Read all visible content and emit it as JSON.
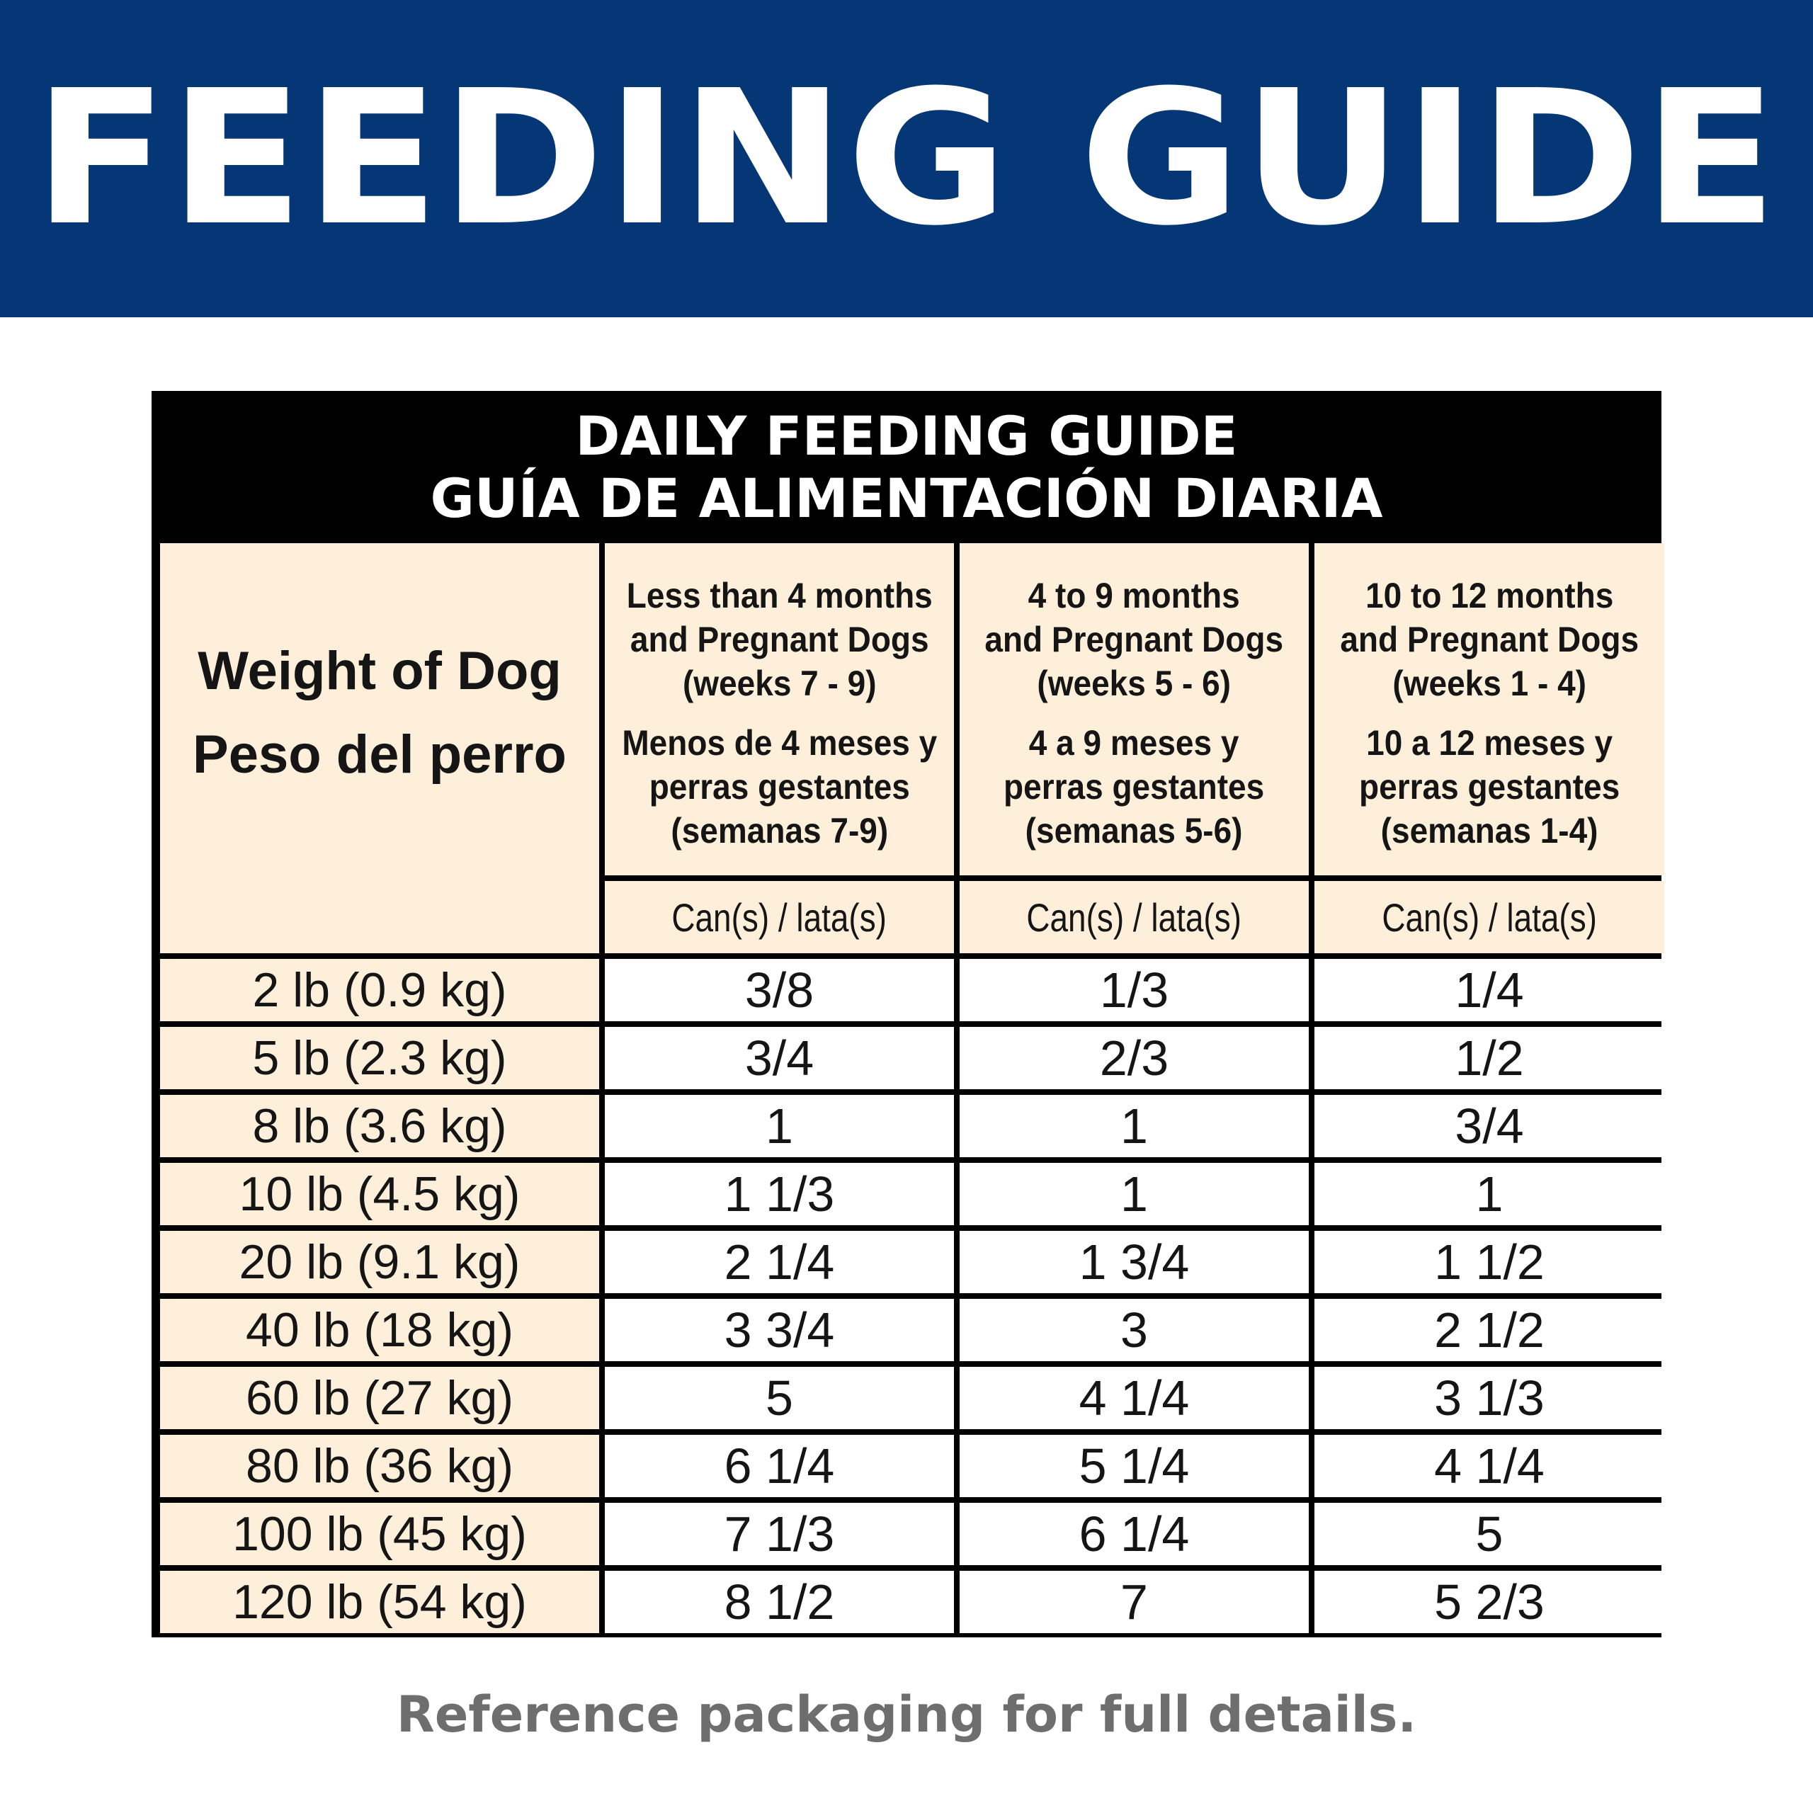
{
  "banner": {
    "title": "FEEDING GUIDE"
  },
  "table": {
    "title_en": "DAILY FEEDING GUIDE",
    "title_es": "GUÍA DE ALIMENTACIÓN DIARIA",
    "weight_header_en": "Weight of Dog",
    "weight_header_es": "Peso del perro",
    "columns": [
      {
        "en": [
          "Less than 4 months",
          "and Pregnant Dogs",
          "(weeks 7 - 9)"
        ],
        "es": [
          "Menos de 4 meses y",
          "perras gestantes",
          "(semanas 7-9)"
        ],
        "unit": "Can(s) / lata(s)"
      },
      {
        "en": [
          "4 to 9 months",
          "and Pregnant Dogs",
          "(weeks 5 - 6)"
        ],
        "es": [
          "4 a 9 meses y",
          "perras gestantes",
          "(semanas 5-6)"
        ],
        "unit": "Can(s) / lata(s)"
      },
      {
        "en": [
          "10 to 12 months",
          "and Pregnant Dogs",
          "(weeks 1 - 4)"
        ],
        "es": [
          "10 a 12 meses y",
          "perras gestantes",
          "(semanas 1-4)"
        ],
        "unit": "Can(s) / lata(s)"
      }
    ],
    "rows": [
      {
        "weight": "2 lb (0.9 kg)",
        "values": [
          "3/8",
          "1/3",
          "1/4"
        ]
      },
      {
        "weight": "5 lb (2.3 kg)",
        "values": [
          "3/4",
          "2/3",
          "1/2"
        ]
      },
      {
        "weight": "8 lb (3.6 kg)",
        "values": [
          "1",
          "1",
          "3/4"
        ]
      },
      {
        "weight": "10 lb (4.5 kg)",
        "values": [
          "1 1/3",
          "1",
          "1"
        ]
      },
      {
        "weight": "20 lb (9.1 kg)",
        "values": [
          "2 1/4",
          "1 3/4",
          "1 1/2"
        ]
      },
      {
        "weight": "40 lb (18 kg)",
        "values": [
          "3 3/4",
          "3",
          "2 1/2"
        ]
      },
      {
        "weight": "60 lb (27 kg)",
        "values": [
          "5",
          "4 1/4",
          "3 1/3"
        ]
      },
      {
        "weight": "80 lb (36 kg)",
        "values": [
          "6 1/4",
          "5 1/4",
          "4 1/4"
        ]
      },
      {
        "weight": "100 lb (45 kg)",
        "values": [
          "7 1/3",
          "6 1/4",
          "5"
        ]
      },
      {
        "weight": "120 lb (54 kg)",
        "values": [
          "8 1/2",
          "7",
          "5 2/3"
        ]
      }
    ]
  },
  "footer": {
    "note": "Reference packaging for full details."
  },
  "colors": {
    "banner": "#053776",
    "header_cells": "#fdefd9",
    "table_border": "#000000",
    "footer_text": "#6e6e6e"
  }
}
